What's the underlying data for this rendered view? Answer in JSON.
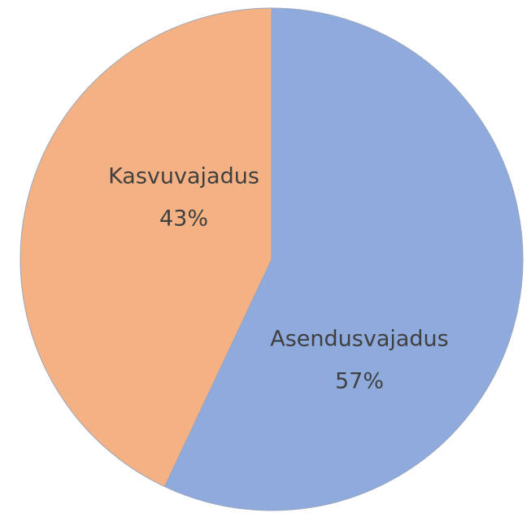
{
  "chart_data": {
    "type": "pie",
    "categories": [
      "Asendusvajadus",
      "Kasvuvajadus"
    ],
    "values": [
      57,
      43
    ],
    "value_labels": [
      "57%",
      "43%"
    ],
    "colors": [
      "#8faadc",
      "#f4b183"
    ]
  }
}
